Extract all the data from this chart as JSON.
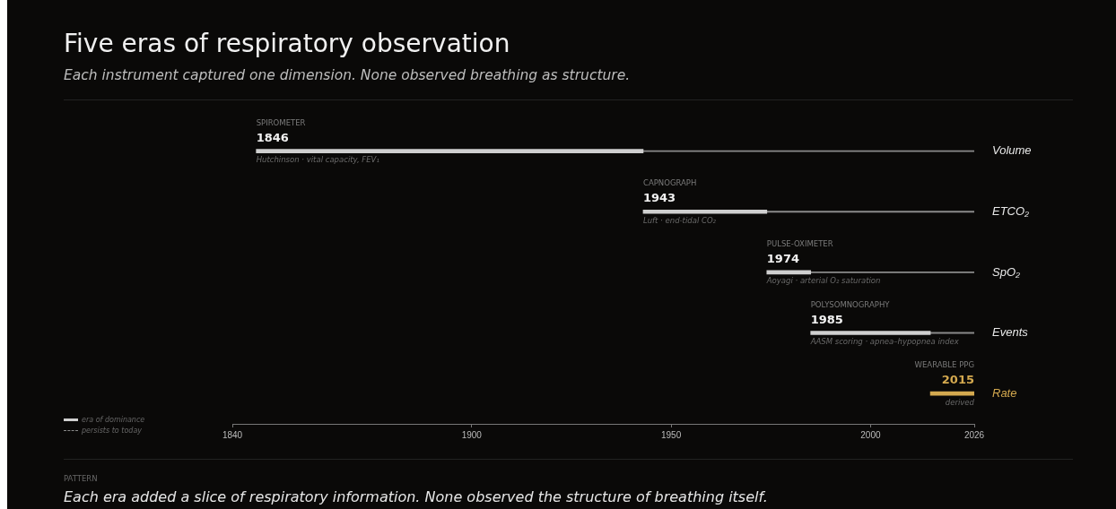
{
  "chart_data": {
    "type": "bar",
    "orientation": "horizontal",
    "title": "Five eras of respiratory observation",
    "subtitle": "Each instrument captured one dimension. None observed breathing as structure.",
    "categories": [
      "Volume",
      "ETCO₂",
      "SpO₂",
      "Events",
      "Rate"
    ],
    "series": [
      {
        "name": "era of dominance",
        "color": "#cfcfcf",
        "colors": [
          "#cfcfcf",
          "#cfcfcf",
          "#cfcfcf",
          "#cfcfcf",
          "#d4a94f"
        ],
        "base": [
          1846,
          1943,
          1974,
          1985,
          2015
        ],
        "values": [
          97,
          31,
          11,
          30,
          11
        ]
      },
      {
        "name": "persists to today",
        "color": "#8a8a8a",
        "line_style": "dashed",
        "base": [
          1943,
          1974,
          1985,
          2015,
          null
        ],
        "values": [
          83,
          52,
          41,
          11,
          null
        ]
      }
    ],
    "xlim": [
      1840,
      2026
    ],
    "xticks": [
      1840,
      1900,
      1950,
      2000,
      2026
    ],
    "grid": false,
    "legend": "bottom left",
    "annotations": [
      "SPIROMETER",
      "CAPNOGRAPH",
      "PULSE-OXIMETER",
      "POLYSOMNOGRAPHY",
      "WEARABLE PPG",
      {
        "text": "1846",
        "x": 1846,
        "y": "Volume"
      },
      {
        "text": "Hutchinson · vital capacity, FEV₁",
        "x": 1846,
        "y": "Volume"
      },
      {
        "text": "1943",
        "x": 1943,
        "y": "ETCO₂"
      },
      {
        "text": "Luft · end-tidal CO₂",
        "x": 1943,
        "y": "ETCO₂"
      },
      {
        "text": "1974",
        "x": 1974,
        "y": "SpO₂"
      },
      {
        "text": "Aoyagi · arterial O₂ saturation",
        "x": 1974,
        "y": "SpO₂"
      },
      {
        "text": "1985",
        "x": 1985,
        "y": "Events"
      },
      {
        "text": "AASM scoring · apnea–hypopnea index",
        "x": 1985,
        "y": "Events"
      },
      {
        "text": "2015",
        "x": 2026,
        "y": "Rate"
      },
      {
        "text": "derived",
        "x": 2026,
        "y": "Rate"
      },
      "PATTERN",
      "Each era added a slice of respiratory information. None observed the structure of breathing itself."
    ]
  }
}
